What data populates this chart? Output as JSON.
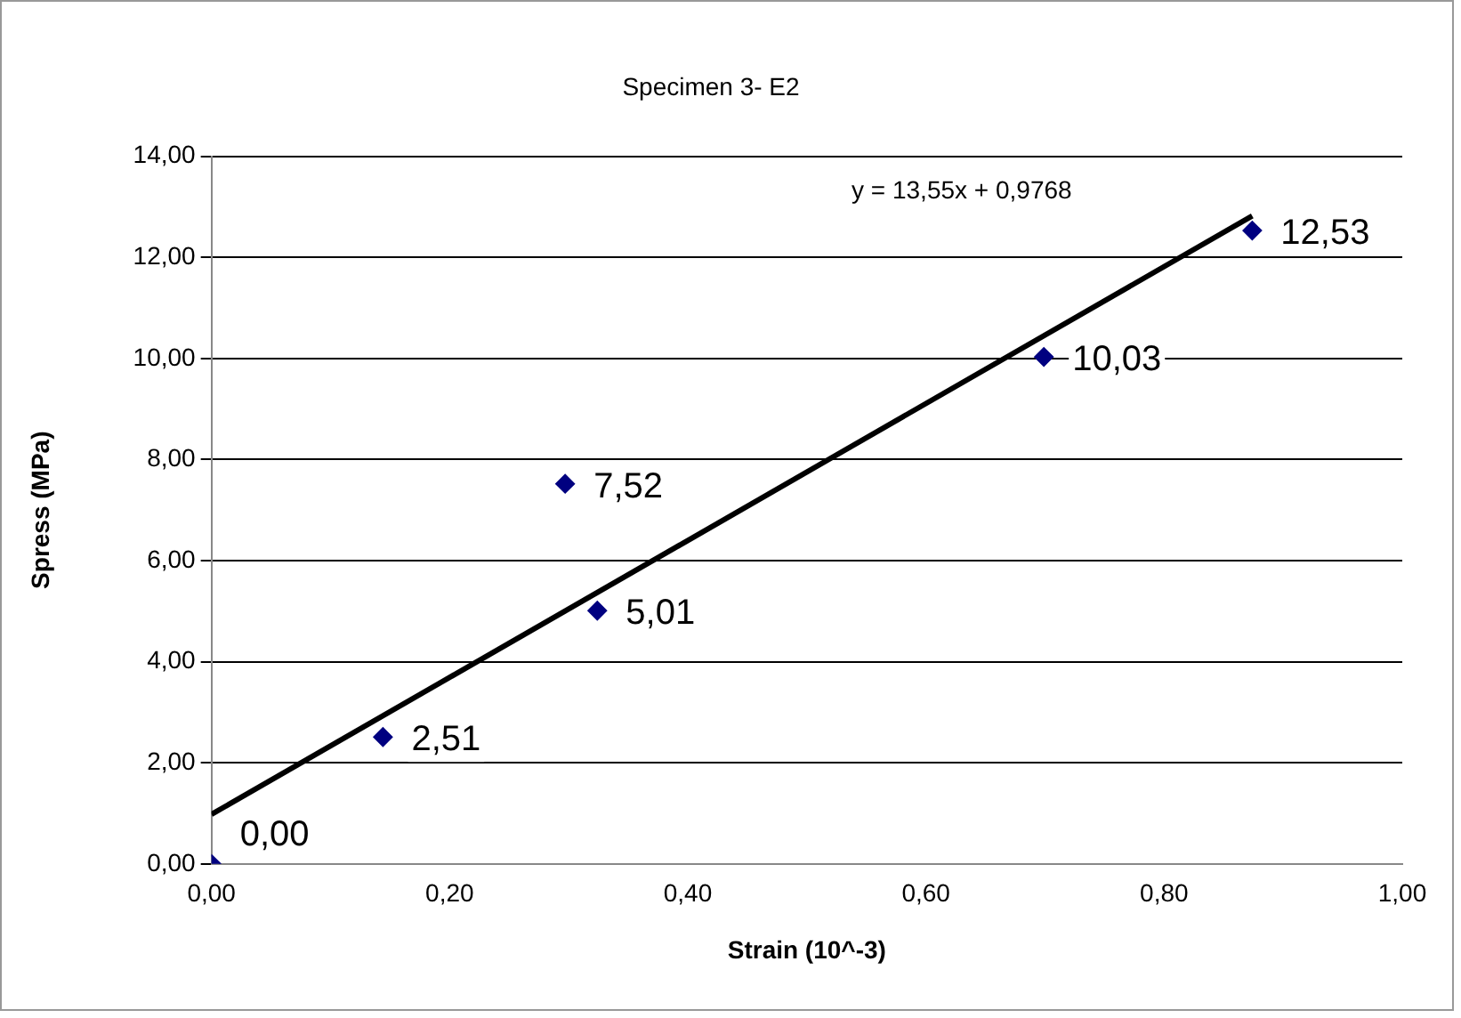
{
  "chart_data": {
    "type": "scatter",
    "title": "Specimen 3- E2",
    "xlabel": "Strain (10^-3)",
    "ylabel": "Spress (MPa)",
    "series": [
      {
        "type": "scatter",
        "color": "#000080",
        "marker": "diamond",
        "x": [
          0,
          0.144,
          0.297,
          0.324,
          0.699,
          0.874
        ],
        "values": [
          0,
          2.51,
          7.52,
          5.01,
          10.03,
          12.53
        ],
        "value_labels": [
          "0,00",
          "2,51",
          "7,52",
          "5,01",
          "10,03",
          "12,53"
        ]
      },
      {
        "type": "line",
        "color": "#000000",
        "line_style": "solid",
        "marker": "none",
        "x": [
          0,
          0.874
        ],
        "values": [
          0.98,
          12.82
        ]
      }
    ],
    "annotations": [
      "y = 13,55x + 0,9768"
    ],
    "xlim": [
      0,
      1
    ],
    "ylim": [
      0,
      14
    ],
    "xticks": [
      {
        "value": 0,
        "label": "0,00"
      },
      {
        "value": 0.2,
        "label": "0,20"
      },
      {
        "value": 0.4,
        "label": "0,40"
      },
      {
        "value": 0.6,
        "label": "0,60"
      },
      {
        "value": 0.8,
        "label": "0,80"
      },
      {
        "value": 1,
        "label": "1,00"
      }
    ],
    "yticks": [
      {
        "value": 0,
        "label": "0,00"
      },
      {
        "value": 2,
        "label": "2,00"
      },
      {
        "value": 4,
        "label": "4,00"
      },
      {
        "value": 6,
        "label": "6,00"
      },
      {
        "value": 8,
        "label": "8,00"
      },
      {
        "value": 10,
        "label": "10,00"
      },
      {
        "value": 12,
        "label": "12,00"
      },
      {
        "value": 14,
        "label": "14,00"
      }
    ],
    "grid": "y",
    "legend": false
  }
}
